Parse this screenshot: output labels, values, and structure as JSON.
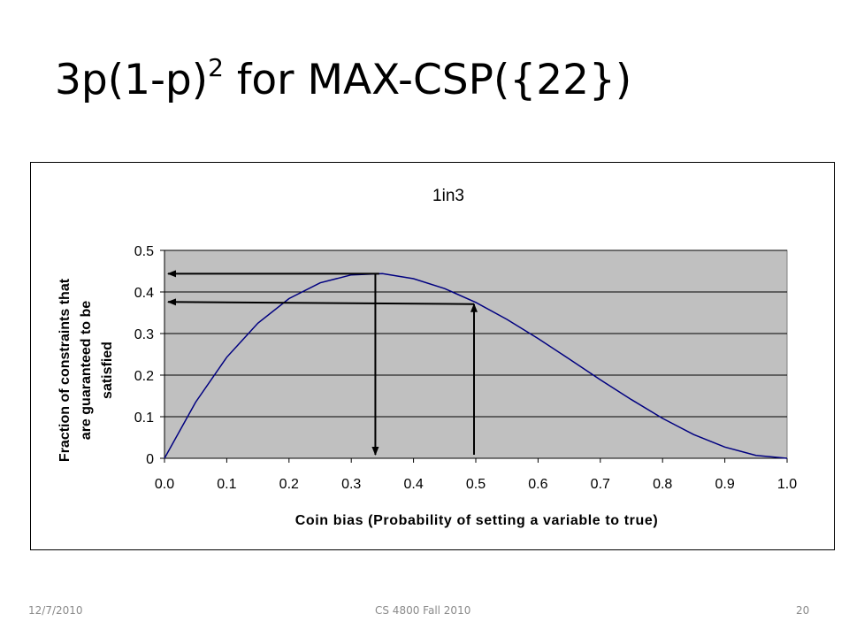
{
  "slide": {
    "title_main": "3p(1-p)",
    "title_sup": "2",
    "title_rest": " for MAX-CSP({22})",
    "footer_date": "12/7/2010",
    "footer_course": "CS 4800 Fall 2010",
    "footer_page": "20"
  },
  "chart_data": {
    "type": "line",
    "title": "1in3",
    "xlabel": "Coin bias (Probability of setting a variable to true)",
    "ylabel_lines": [
      "Fraction of constraints that",
      "are guaranteed to be",
      "satisfied"
    ],
    "xlim": [
      0,
      1
    ],
    "ylim": [
      0,
      0.5
    ],
    "xticks": [
      "0.0",
      "0.1",
      "0.2",
      "0.3",
      "0.4",
      "0.5",
      "0.6",
      "0.7",
      "0.8",
      "0.9",
      "1.0"
    ],
    "yticks": [
      "0",
      "0.1",
      "0.2",
      "0.3",
      "0.4",
      "0.5"
    ],
    "grid": "horizontal",
    "legend": "none",
    "x": [
      0.0,
      0.05,
      0.1,
      0.15,
      0.2,
      0.25,
      0.3,
      0.35,
      0.4,
      0.45,
      0.5,
      0.55,
      0.6,
      0.65,
      0.7,
      0.75,
      0.8,
      0.85,
      0.9,
      0.95,
      1.0
    ],
    "y": [
      0.0,
      0.135,
      0.243,
      0.325,
      0.384,
      0.422,
      0.441,
      0.444,
      0.432,
      0.408,
      0.375,
      0.334,
      0.288,
      0.239,
      0.189,
      0.141,
      0.096,
      0.057,
      0.027,
      0.007,
      0.0
    ],
    "colors": {
      "line": "#000080",
      "plot_bg": "#c0c0c0",
      "grid": "#000000",
      "arrow": "#000000"
    },
    "annotations": [
      {
        "type": "arrow-path",
        "from": [
          0.333,
          0.444
        ],
        "via": [
          0.333,
          0.444
        ],
        "horizontal_to_x": 0.0,
        "vertical_to_y": 0.0,
        "at_y": 0.444
      },
      {
        "type": "arrow-path",
        "from": [
          0.5,
          0.375
        ],
        "horizontal_to_x": 0.0,
        "vertical_from_y": 0.0,
        "at_y": 0.375
      }
    ]
  }
}
